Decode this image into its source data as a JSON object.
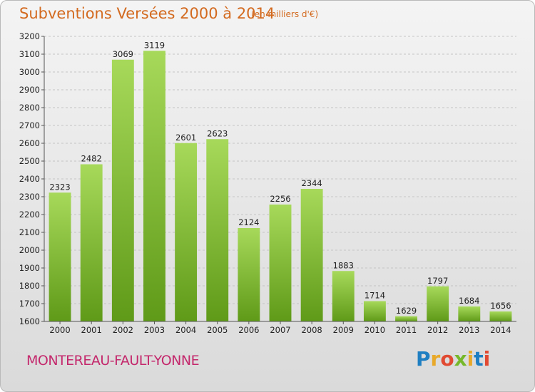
{
  "header": {
    "title": "Subventions Versées 2000 à 2014",
    "unit_note": "(en milliers d'€)"
  },
  "footer": {
    "commune": "MONTEREAU-FAULT-YONNE",
    "logo_letters": [
      "P",
      "r",
      "o",
      "x",
      "i",
      "t",
      "i"
    ]
  },
  "colors": {
    "title": "#d36a1f",
    "commune": "#c4286c",
    "bar_light": "#a7d95a",
    "bar_dark": "#5f9a18",
    "logo": [
      "#1f7fc2",
      "#e8a92a",
      "#e14a32",
      "#76b82a",
      "#e8a92a",
      "#1f7fc2",
      "#e14a32"
    ]
  },
  "chart_data": {
    "type": "bar",
    "title": "Subventions Versées 2000 à 2014",
    "subtitle": "(en milliers d'€)",
    "xlabel": "",
    "ylabel": "",
    "categories": [
      "2000",
      "2001",
      "2002",
      "2003",
      "2004",
      "2005",
      "2006",
      "2007",
      "2008",
      "2009",
      "2010",
      "2011",
      "2012",
      "2013",
      "2014"
    ],
    "values": [
      2323,
      2482,
      3069,
      3119,
      2601,
      2623,
      2124,
      2256,
      2344,
      1883,
      1714,
      1629,
      1797,
      1684,
      1656
    ],
    "ylim": [
      1600,
      3200
    ],
    "yticks": [
      1600,
      1700,
      1800,
      1900,
      2000,
      2100,
      2200,
      2300,
      2400,
      2500,
      2600,
      2700,
      2800,
      2900,
      3000,
      3100,
      3200
    ],
    "grid": true,
    "legend": "none"
  }
}
